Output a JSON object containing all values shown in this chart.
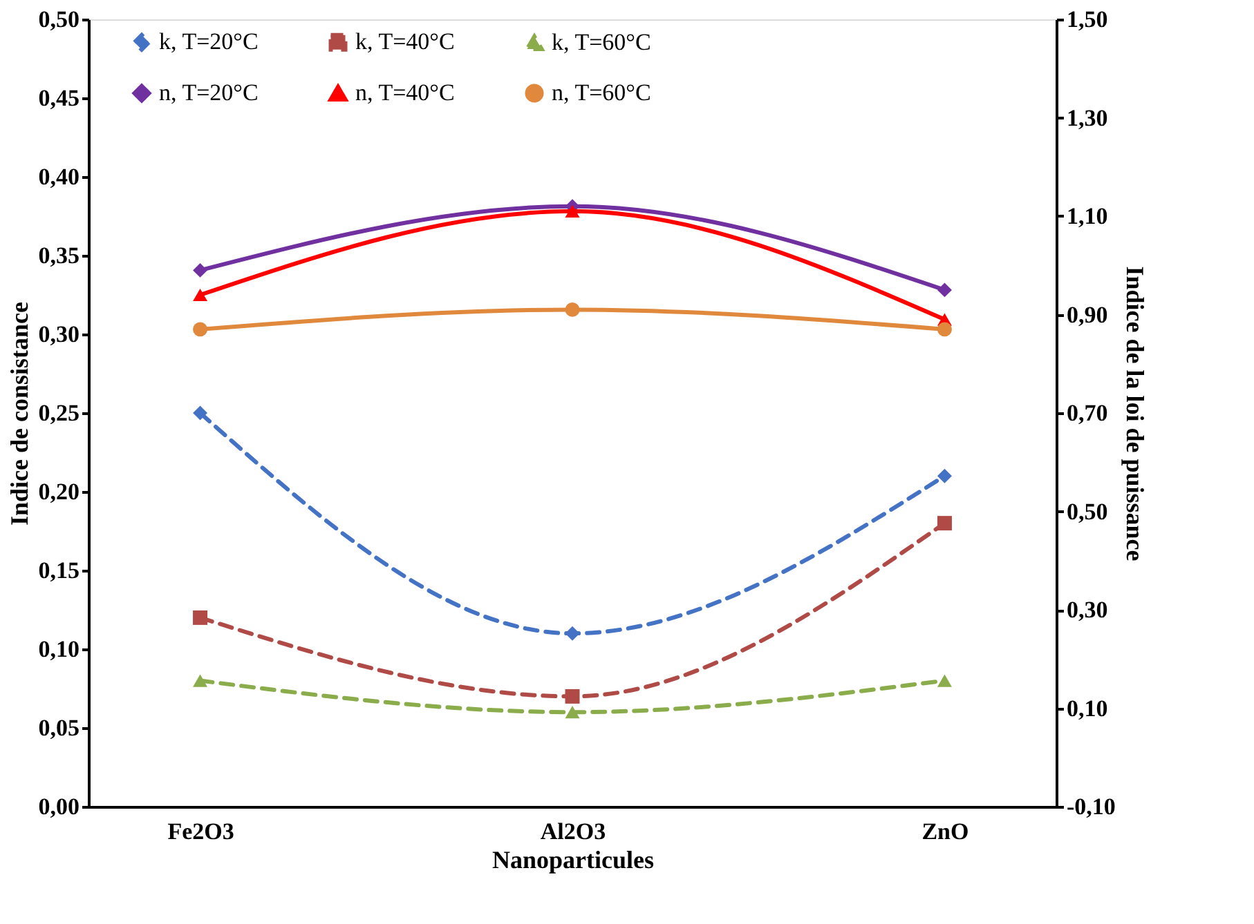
{
  "chart_data": {
    "type": "line",
    "xlabel": "Nanoparticules",
    "ylabel": "Indice de consistance",
    "y2label": "Indice de la loi de puissance",
    "categories": [
      "Fe2O3",
      "Al2O3",
      "ZnO"
    ],
    "series": [
      {
        "name": "k, T=20°C",
        "color": "#4472c4",
        "values": [
          0.25,
          0.11,
          0.21
        ],
        "marker": "diamond",
        "line_style": "dashed"
      },
      {
        "name": "k, T=40°C",
        "color": "#b04a47",
        "values": [
          0.12,
          0.07,
          0.18
        ],
        "marker": "square",
        "line_style": "dashed"
      },
      {
        "name": "k, T=60°C",
        "color": "#8aac4a",
        "values": [
          0.08,
          0.06,
          0.08
        ],
        "marker": "triangle",
        "line_style": "dashed"
      },
      {
        "name": "n, T=20°C",
        "color": "#7030a0",
        "values": [
          0.99,
          1.12,
          0.95
        ],
        "marker": "diamond",
        "line_style": "solid",
        "axis": "y2"
      },
      {
        "name": "n, T=40°C",
        "color": "#ff0000",
        "values": [
          0.94,
          1.11,
          0.89
        ],
        "marker": "triangle",
        "line_style": "solid",
        "axis": "y2"
      },
      {
        "name": "n, T=60°C",
        "color": "#e0883c",
        "values": [
          0.87,
          0.91,
          0.87
        ],
        "marker": "circle",
        "line_style": "solid",
        "axis": "y2"
      }
    ],
    "ylim": [
      0,
      0.5
    ],
    "yticks": [
      {
        "value": 0,
        "label": "0,00"
      },
      {
        "value": 0.05,
        "label": "0,05"
      },
      {
        "value": 0.1,
        "label": "0,10"
      },
      {
        "value": 0.15,
        "label": "0,15"
      },
      {
        "value": 0.2,
        "label": "0,20"
      },
      {
        "value": 0.25,
        "label": "0,25"
      },
      {
        "value": 0.3,
        "label": "0,30"
      },
      {
        "value": 0.35,
        "label": "0,35"
      },
      {
        "value": 0.4,
        "label": "0,40"
      },
      {
        "value": 0.45,
        "label": "0,45"
      },
      {
        "value": 0.5,
        "label": "0,50"
      }
    ],
    "y2lim": [
      -0.1,
      1.5
    ],
    "y2ticks": [
      {
        "value": -0.1,
        "label": "-0,10"
      },
      {
        "value": 0.1,
        "label": "0,10"
      },
      {
        "value": 0.3,
        "label": "0,30"
      },
      {
        "value": 0.5,
        "label": "0,50"
      },
      {
        "value": 0.7,
        "label": "0,70"
      },
      {
        "value": 0.9,
        "label": "0,90"
      },
      {
        "value": 1.1,
        "label": "1,10"
      },
      {
        "value": 1.3,
        "label": "1,30"
      },
      {
        "value": 1.5,
        "label": "1,50"
      }
    ],
    "grid": false,
    "legend": "top"
  }
}
